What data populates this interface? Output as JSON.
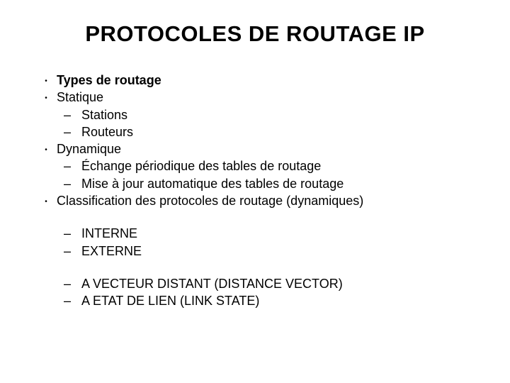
{
  "title": "PROTOCOLES DE ROUTAGE IP",
  "items": [
    {
      "type": "bullet",
      "text": "Types de routage",
      "bold": true
    },
    {
      "type": "bullet",
      "text": "Statique",
      "bold": false
    },
    {
      "type": "sub",
      "text": "Stations"
    },
    {
      "type": "sub",
      "text": "Routeurs"
    },
    {
      "type": "bullet",
      "text": "Dynamique",
      "bold": false
    },
    {
      "type": "sub",
      "text": "Échange périodique des tables de routage"
    },
    {
      "type": "sub",
      "text": "Mise à jour automatique des tables de routage"
    },
    {
      "type": "bullet",
      "text": " Classification des protocoles de routage (dynamiques)",
      "bold": false
    },
    {
      "type": "gap"
    },
    {
      "type": "sub",
      "text": "INTERNE"
    },
    {
      "type": "sub",
      "text": "EXTERNE"
    },
    {
      "type": "gap"
    },
    {
      "type": "sub",
      "text": "A VECTEUR DISTANT (DISTANCE VECTOR)"
    },
    {
      "type": "sub",
      "text": "A ETAT DE LIEN (LINK STATE)"
    }
  ],
  "markers": {
    "bullet": "•",
    "sub": "–"
  },
  "colors": {
    "background": "#ffffff",
    "text": "#000000"
  },
  "typography": {
    "title_fontsize": 31,
    "body_fontsize": 18,
    "title_weight": "bold"
  }
}
